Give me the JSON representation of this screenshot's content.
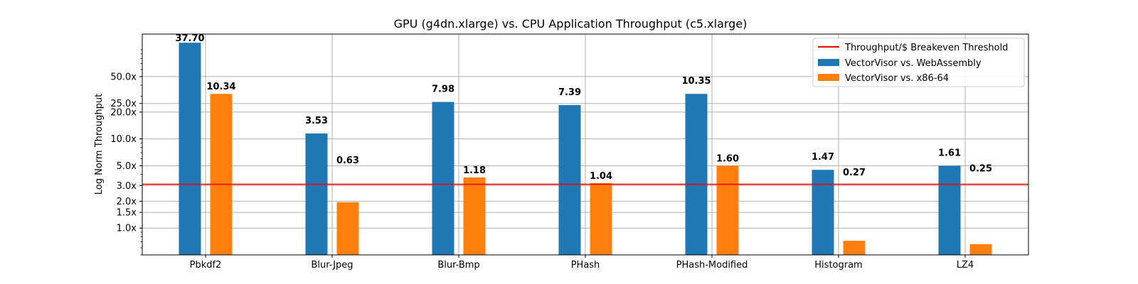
{
  "chart_data": {
    "type": "bar",
    "title": "GPU (g4dn.xlarge) vs. CPU Application Throughput (c5.xlarge)",
    "ylabel": "Log Norm Throughput",
    "xlabel": "",
    "yscale": "log",
    "ylim": [
      0.5,
      150
    ],
    "grid": true,
    "legend_position": "top-right",
    "categories": [
      "Pbkdf2",
      "Blur-Jpeg",
      "Blur-Bmp",
      "PHash",
      "PHash-Modified",
      "Histogram",
      "LZ4"
    ],
    "y_ticks": [
      {
        "value": 1.0,
        "label": "1.0x"
      },
      {
        "value": 1.5,
        "label": "1.5x"
      },
      {
        "value": 2.0,
        "label": "2.0x"
      },
      {
        "value": 3.0,
        "label": "3.0x"
      },
      {
        "value": 5.0,
        "label": "5.0x"
      },
      {
        "value": 10.0,
        "label": "10.0x"
      },
      {
        "value": 20.0,
        "label": "20.0x"
      },
      {
        "value": 25.0,
        "label": "25.0x"
      },
      {
        "value": 50.0,
        "label": "50.0x"
      }
    ],
    "threshold": {
      "name": "Throughput/$ Breakeven Threshold",
      "value": 3.1,
      "color": "#ff0000"
    },
    "series": [
      {
        "name": "VectorVisor vs. WebAssembly",
        "color": "#1f77b4",
        "values": [
          120,
          11.5,
          26,
          24,
          32,
          4.5,
          5.0
        ],
        "labels": [
          "37.70",
          "3.53",
          "7.98",
          "7.39",
          "10.35",
          "1.47",
          "1.61"
        ]
      },
      {
        "name": "VectorVisor vs. x86-64",
        "color": "#ff7f0e",
        "values": [
          32,
          1.95,
          3.7,
          3.2,
          5.0,
          0.72,
          0.66
        ],
        "labels": [
          "10.34",
          "0.63",
          "1.18",
          "1.04",
          "1.60",
          "0.27",
          "0.25"
        ]
      }
    ]
  }
}
